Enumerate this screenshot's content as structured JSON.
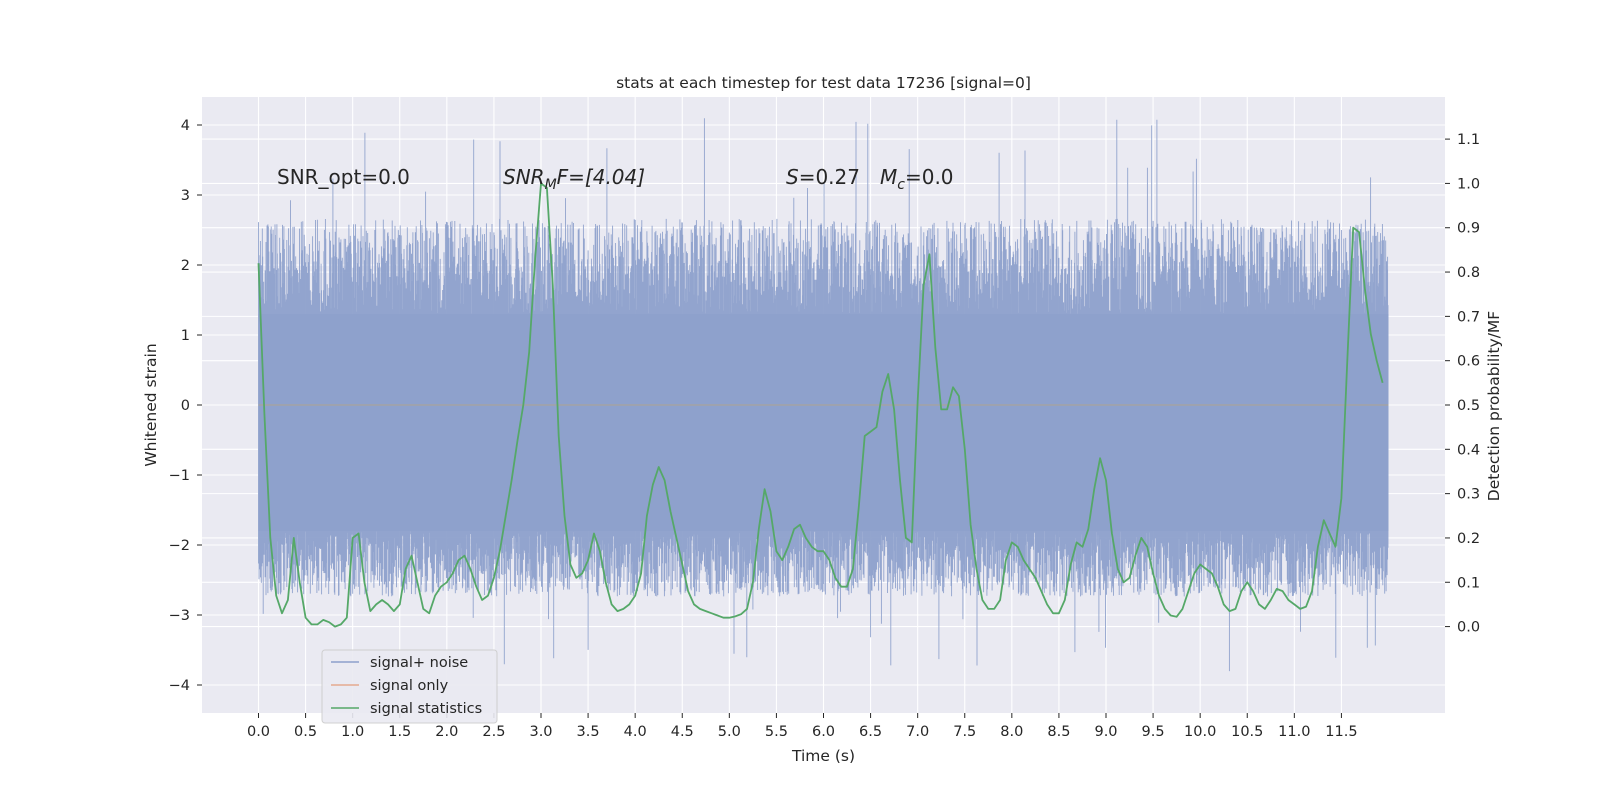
{
  "chart_data": {
    "type": "line",
    "title": "stats at each timestep for test data 17236 [signal=0]",
    "xlabel": "Time (s)",
    "ylabel_left": "Whitened strain",
    "ylabel_right": "Detection probability/MF",
    "xlim": [
      -0.6,
      12.6
    ],
    "ylim_left": [
      -4.4,
      4.4
    ],
    "ylim_right": [
      -0.195,
      1.195
    ],
    "x_ticks": [
      "0.0",
      "0.5",
      "1.0",
      "1.5",
      "2.0",
      "2.5",
      "3.0",
      "3.5",
      "4.0",
      "4.5",
      "5.0",
      "5.5",
      "6.0",
      "6.5",
      "7.0",
      "7.5",
      "8.0",
      "8.5",
      "9.0",
      "9.5",
      "10.0",
      "10.5",
      "11.0",
      "11.5"
    ],
    "y_ticks_left": [
      "−4",
      "−3",
      "−2",
      "−1",
      "0",
      "1",
      "2",
      "3",
      "4"
    ],
    "y_ticks_right": [
      "0.0",
      "0.1",
      "0.2",
      "0.3",
      "0.4",
      "0.5",
      "0.6",
      "0.7",
      "0.8",
      "0.9",
      "1.0",
      "1.1"
    ],
    "grid": true,
    "legend_placement": "lower-left",
    "annotations": {
      "snr_opt": "SNR_opt=0.0",
      "snr_mf_base": "SNR",
      "snr_mf_sub": "M",
      "snr_mf_rest": "F=[4.04]",
      "s_italic": "S",
      "s_rest": "=0.27",
      "mc_base": "M",
      "mc_sub": "c",
      "mc_rest": "=0.0"
    },
    "series": [
      {
        "name": "signal+ noise",
        "color": "#8da0cb",
        "axis": "left",
        "kind": "noise-band",
        "duration": 12.0,
        "dense_range": [
          -1.8,
          1.3
        ],
        "typical_peak_range": [
          -2.9,
          2.9
        ],
        "extreme_range": [
          -3.95,
          4.1
        ]
      },
      {
        "name": "signal only",
        "color": "#e5a98f",
        "axis": "left",
        "x": [
          0.0,
          12.0
        ],
        "y": [
          0.0,
          0.0
        ]
      },
      {
        "name": "signal statistics",
        "color": "#55a868",
        "axis": "right",
        "x": [
          0.0,
          0.0625,
          0.125,
          0.1875,
          0.25,
          0.3125,
          0.375,
          0.4375,
          0.5,
          0.5625,
          0.625,
          0.6875,
          0.75,
          0.8125,
          0.875,
          0.9375,
          1.0,
          1.0625,
          1.125,
          1.1875,
          1.25,
          1.3125,
          1.375,
          1.4375,
          1.5,
          1.5625,
          1.625,
          1.6875,
          1.75,
          1.8125,
          1.875,
          1.9375,
          2.0,
          2.0625,
          2.125,
          2.1875,
          2.25,
          2.3125,
          2.375,
          2.4375,
          2.5,
          2.5625,
          2.625,
          2.6875,
          2.75,
          2.8125,
          2.875,
          2.9375,
          3.0,
          3.0625,
          3.125,
          3.1875,
          3.25,
          3.3125,
          3.375,
          3.4375,
          3.5,
          3.5625,
          3.625,
          3.6875,
          3.75,
          3.8125,
          3.875,
          3.9375,
          4.0,
          4.0625,
          4.125,
          4.1875,
          4.25,
          4.3125,
          4.375,
          4.4375,
          4.5,
          4.5625,
          4.625,
          4.6875,
          4.75,
          4.8125,
          4.875,
          4.9375,
          5.0,
          5.0625,
          5.125,
          5.1875,
          5.25,
          5.3125,
          5.375,
          5.4375,
          5.5,
          5.5625,
          5.625,
          5.6875,
          5.75,
          5.8125,
          5.875,
          5.9375,
          6.0,
          6.0625,
          6.125,
          6.1875,
          6.25,
          6.3125,
          6.375,
          6.4375,
          6.5,
          6.5625,
          6.625,
          6.6875,
          6.75,
          6.8125,
          6.875,
          6.9375,
          7.0,
          7.0625,
          7.125,
          7.1875,
          7.25,
          7.3125,
          7.375,
          7.4375,
          7.5,
          7.5625,
          7.625,
          7.6875,
          7.75,
          7.8125,
          7.875,
          7.9375,
          8.0,
          8.0625,
          8.125,
          8.1875,
          8.25,
          8.3125,
          8.375,
          8.4375,
          8.5,
          8.5625,
          8.625,
          8.6875,
          8.75,
          8.8125,
          8.875,
          8.9375,
          9.0,
          9.0625,
          9.125,
          9.1875,
          9.25,
          9.3125,
          9.375,
          9.4375,
          9.5,
          9.5625,
          9.625,
          9.6875,
          9.75,
          9.8125,
          9.875,
          9.9375,
          10.0,
          10.0625,
          10.125,
          10.1875,
          10.25,
          10.3125,
          10.375,
          10.4375,
          10.5,
          10.5625,
          10.625,
          10.6875,
          10.75,
          10.8125,
          10.875,
          10.9375,
          11.0,
          11.0625,
          11.125,
          11.1875,
          11.25,
          11.3125,
          11.375,
          11.4375,
          11.5,
          11.5625,
          11.625,
          11.6875,
          11.75,
          11.8125,
          11.875,
          11.9375
        ],
        "y": [
          0.82,
          0.48,
          0.2,
          0.07,
          0.03,
          0.06,
          0.2,
          0.1,
          0.02,
          0.005,
          0.005,
          0.015,
          0.01,
          0.0,
          0.005,
          0.02,
          0.2,
          0.21,
          0.1,
          0.035,
          0.05,
          0.06,
          0.05,
          0.035,
          0.05,
          0.13,
          0.16,
          0.1,
          0.04,
          0.03,
          0.07,
          0.09,
          0.1,
          0.12,
          0.15,
          0.16,
          0.13,
          0.09,
          0.06,
          0.07,
          0.11,
          0.17,
          0.25,
          0.33,
          0.42,
          0.5,
          0.62,
          0.83,
          1.0,
          0.99,
          0.77,
          0.43,
          0.25,
          0.14,
          0.11,
          0.12,
          0.15,
          0.21,
          0.17,
          0.1,
          0.05,
          0.035,
          0.04,
          0.05,
          0.07,
          0.12,
          0.25,
          0.32,
          0.36,
          0.33,
          0.26,
          0.2,
          0.14,
          0.08,
          0.05,
          0.04,
          0.035,
          0.03,
          0.025,
          0.02,
          0.02,
          0.023,
          0.028,
          0.04,
          0.1,
          0.22,
          0.31,
          0.26,
          0.17,
          0.15,
          0.18,
          0.22,
          0.23,
          0.2,
          0.18,
          0.17,
          0.17,
          0.15,
          0.11,
          0.09,
          0.09,
          0.13,
          0.27,
          0.43,
          0.44,
          0.45,
          0.53,
          0.57,
          0.49,
          0.33,
          0.2,
          0.19,
          0.51,
          0.77,
          0.84,
          0.63,
          0.49,
          0.49,
          0.54,
          0.52,
          0.4,
          0.23,
          0.13,
          0.06,
          0.04,
          0.04,
          0.06,
          0.15,
          0.19,
          0.18,
          0.15,
          0.13,
          0.11,
          0.08,
          0.05,
          0.03,
          0.03,
          0.06,
          0.14,
          0.19,
          0.18,
          0.22,
          0.31,
          0.38,
          0.33,
          0.21,
          0.13,
          0.1,
          0.11,
          0.16,
          0.2,
          0.18,
          0.12,
          0.07,
          0.04,
          0.025,
          0.022,
          0.04,
          0.08,
          0.12,
          0.14,
          0.13,
          0.12,
          0.09,
          0.05,
          0.035,
          0.04,
          0.08,
          0.1,
          0.08,
          0.05,
          0.04,
          0.06,
          0.085,
          0.08,
          0.06,
          0.05,
          0.04,
          0.045,
          0.08,
          0.18,
          0.24,
          0.21,
          0.18,
          0.29,
          0.6,
          0.9,
          0.89,
          0.76,
          0.66,
          0.6,
          0.55
        ]
      }
    ]
  }
}
